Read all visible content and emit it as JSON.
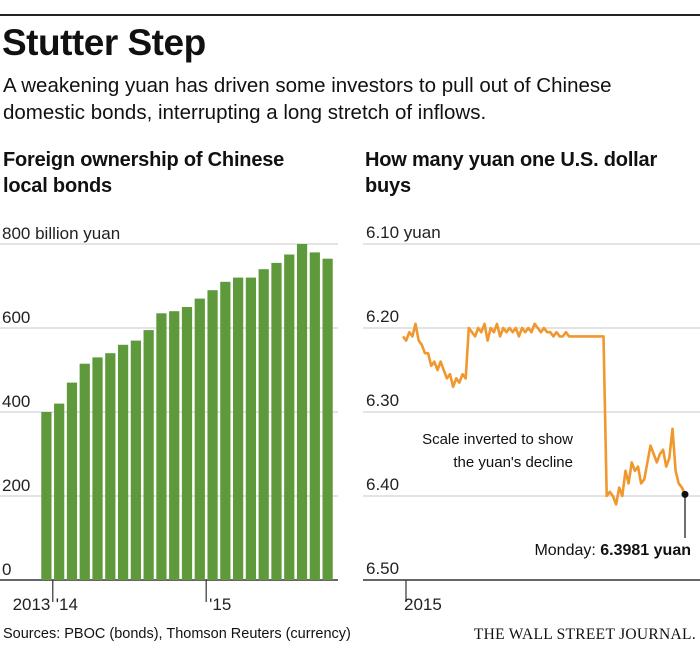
{
  "header": {
    "title": "Stutter Step",
    "subtitle": "A weakening yuan has driven some investors to pull out of Chinese domestic bonds, interrupting a long stretch of inflows."
  },
  "footer": {
    "source": "Sources: PBOC (bonds), Thomson Reuters (currency)",
    "publisher": "THE WALL STREET JOURNAL."
  },
  "colors": {
    "bars": "#5e9a3c",
    "line": "#f0982e",
    "grid": "#c8c8c8",
    "text": "#222222"
  },
  "chart_data": [
    {
      "type": "bar",
      "title": "Foreign ownership of Chinese local bonds",
      "ylabel": "",
      "unit_label": "800 billion yuan",
      "ylim": [
        0,
        800
      ],
      "yticks": [
        0,
        200,
        400,
        600,
        800
      ],
      "ytick_labels": [
        "0",
        "200",
        "400",
        "600",
        "800 billion yuan"
      ],
      "xtick_labels": [
        "2013",
        "'14",
        "'15"
      ],
      "grid": true,
      "categories": [
        "2013-12",
        "2014-01",
        "2014-02",
        "2014-03",
        "2014-04",
        "2014-05",
        "2014-06",
        "2014-07",
        "2014-08",
        "2014-09",
        "2014-10",
        "2014-11",
        "2014-12",
        "2015-01",
        "2015-02",
        "2015-03",
        "2015-04",
        "2015-05",
        "2015-06",
        "2015-07",
        "2015-08",
        "2015-09",
        "2015-10"
      ],
      "values": [
        400,
        420,
        470,
        515,
        530,
        540,
        560,
        570,
        595,
        635,
        640,
        650,
        670,
        690,
        710,
        720,
        720,
        740,
        755,
        775,
        800,
        780,
        765
      ]
    },
    {
      "type": "line",
      "title": "How many yuan one U.S. dollar buys",
      "inverted_scale": true,
      "ylim": [
        6.1,
        6.5
      ],
      "yticks": [
        6.1,
        6.2,
        6.3,
        6.4,
        6.5
      ],
      "ytick_labels": [
        "6.10 yuan",
        "6.20",
        "6.30",
        "6.40",
        "6.50"
      ],
      "xtick_labels": [
        "2015"
      ],
      "grid": true,
      "annotation": [
        "Scale inverted to show",
        "the yuan's decline"
      ],
      "callout": {
        "label": "Monday: ",
        "value": "6.3981 yuan"
      },
      "series": [
        {
          "values": [
            6.21,
            6.215,
            6.205,
            6.21,
            6.195,
            6.215,
            6.22,
            6.23,
            6.23,
            6.245,
            6.24,
            6.25,
            6.24,
            6.25,
            6.26,
            6.255,
            6.27,
            6.26,
            6.265,
            6.255,
            6.26,
            6.2,
            6.205,
            6.21,
            6.2,
            6.205,
            6.195,
            6.215,
            6.2,
            6.205,
            6.195,
            6.21,
            6.2,
            6.205,
            6.2,
            6.205,
            6.2,
            6.21,
            6.2,
            6.205,
            6.2,
            6.205,
            6.195,
            6.2,
            6.205,
            6.2,
            6.205,
            6.205,
            6.21,
            6.205,
            6.21,
            6.21,
            6.205,
            6.21,
            6.21,
            6.21,
            6.21,
            6.21,
            6.21,
            6.21,
            6.21,
            6.21,
            6.21,
            6.21,
            6.21,
            6.4,
            6.395,
            6.4,
            6.41,
            6.39,
            6.4,
            6.37,
            6.385,
            6.36,
            6.37,
            6.365,
            6.385,
            6.38,
            6.36,
            6.34,
            6.35,
            6.36,
            6.35,
            6.345,
            6.365,
            6.355,
            6.32,
            6.37,
            6.385,
            6.39,
            6.3981
          ]
        }
      ]
    }
  ]
}
